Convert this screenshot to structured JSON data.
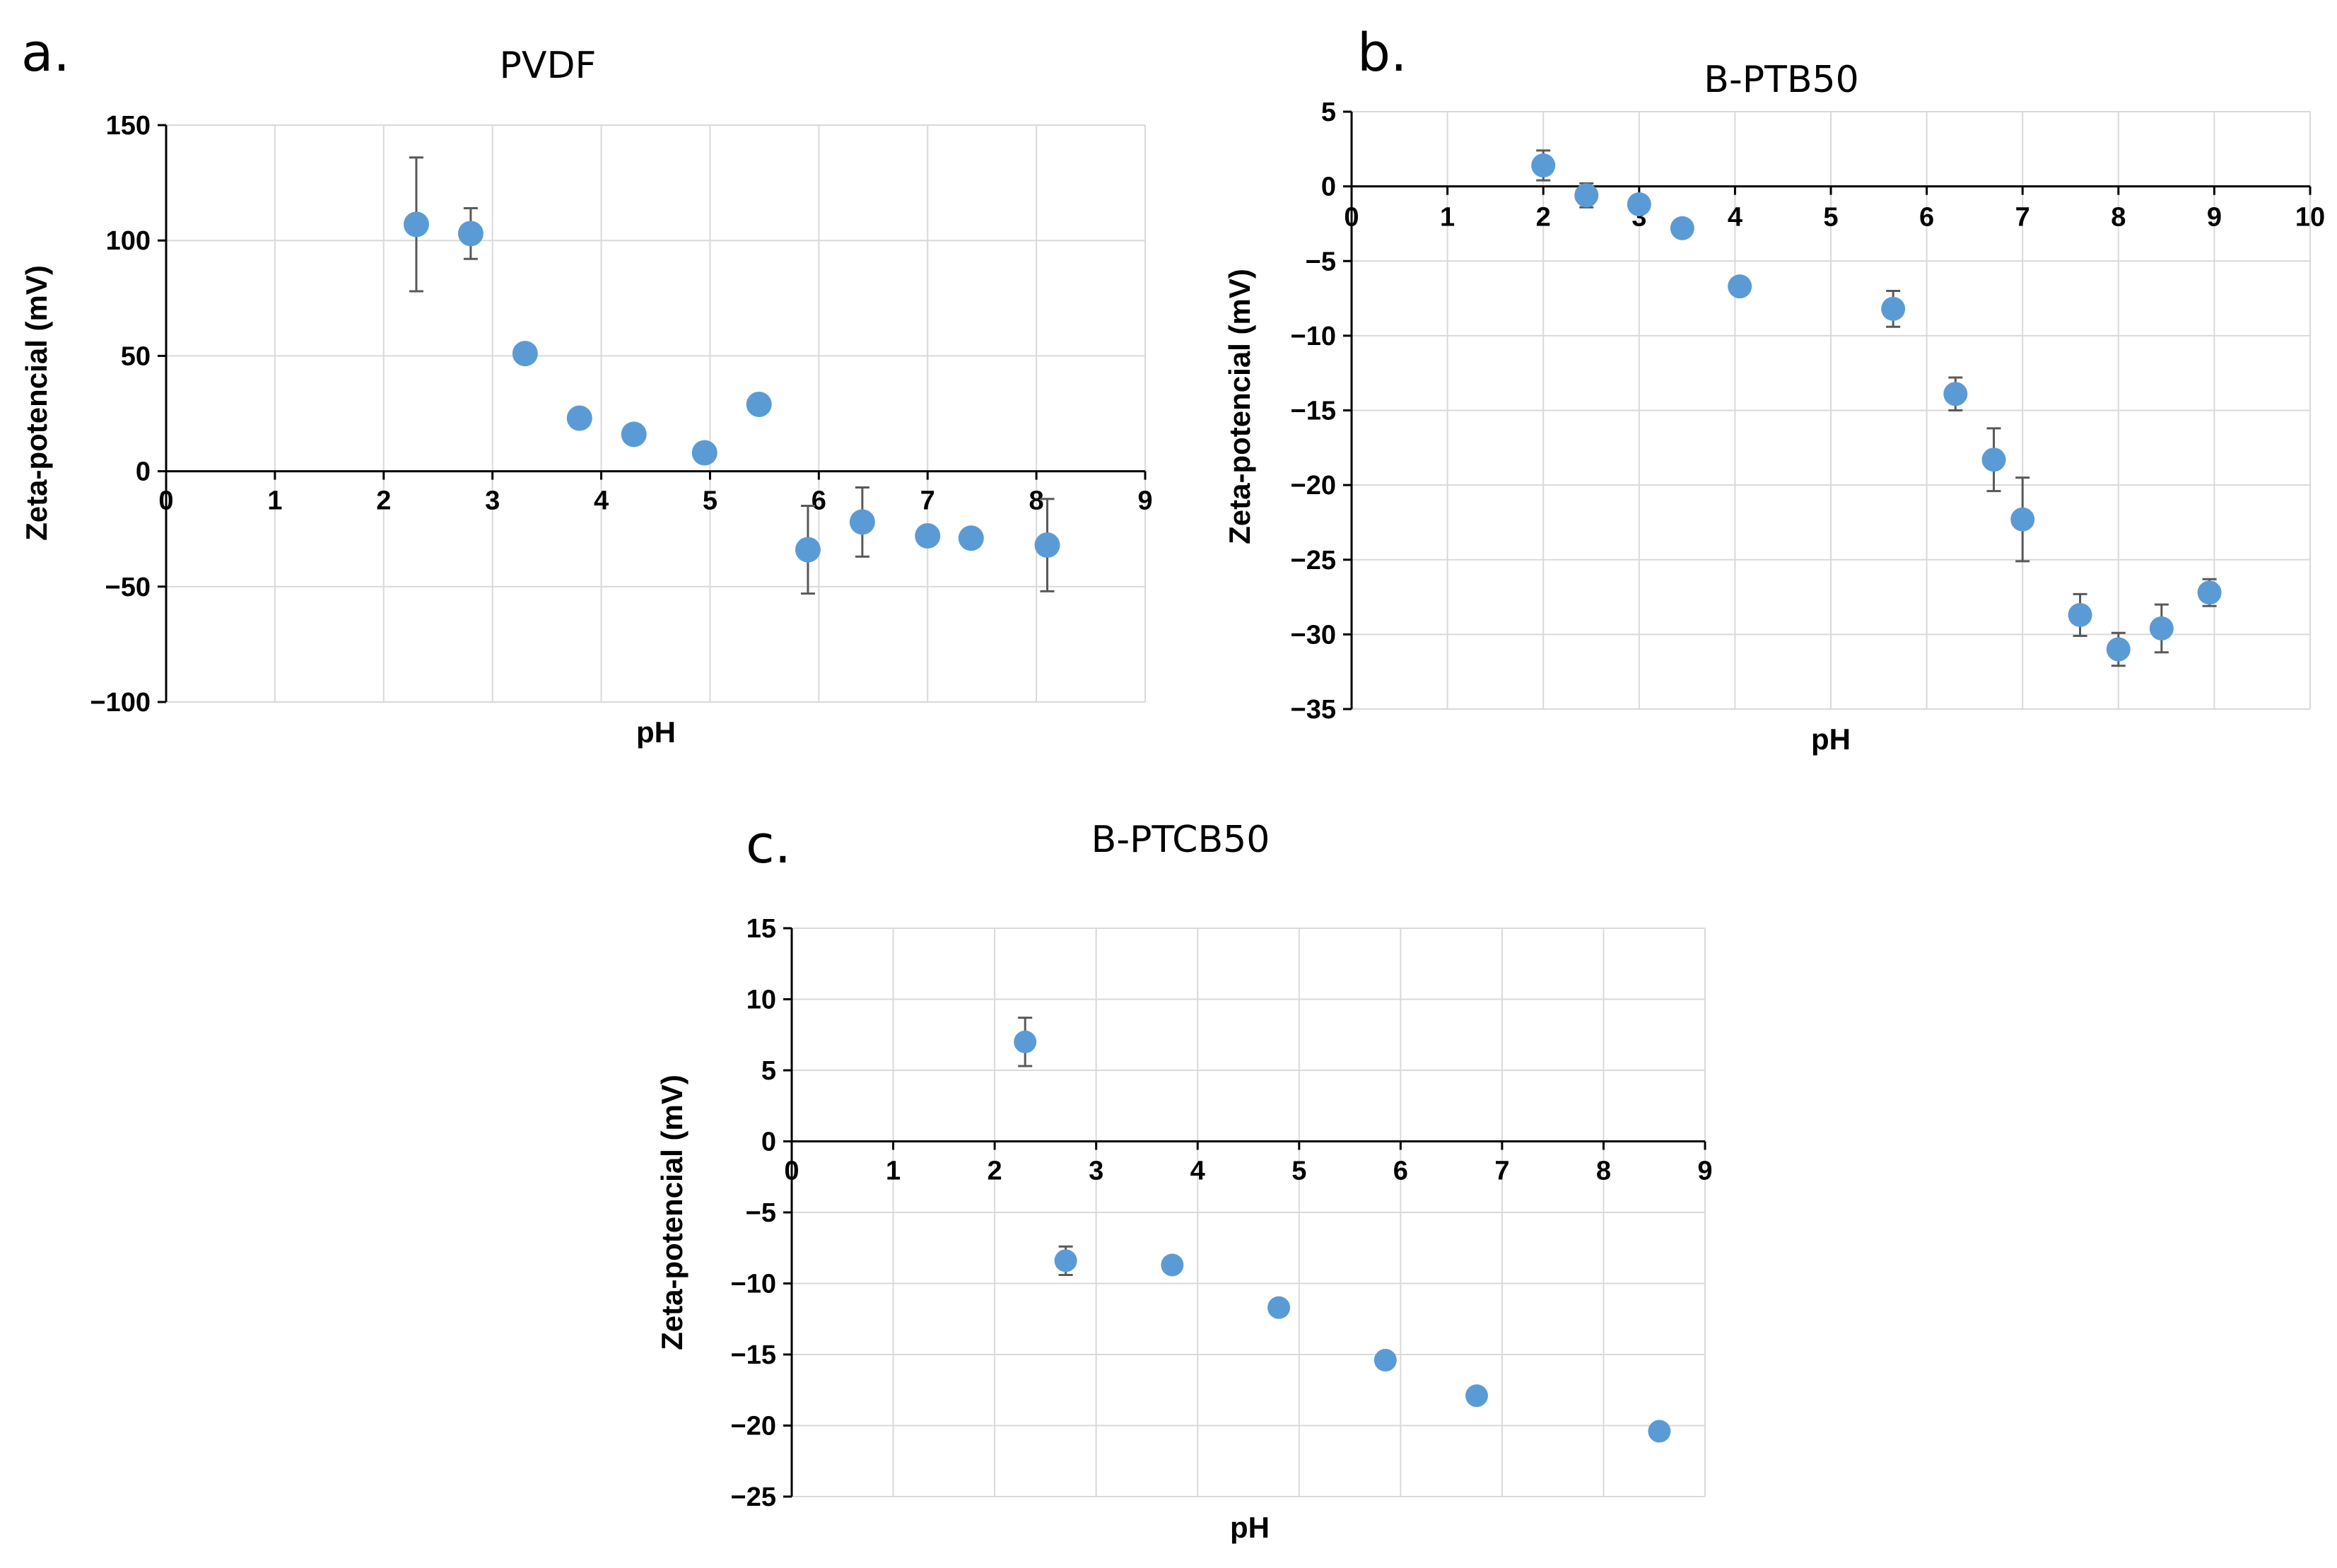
{
  "chart_data": [
    {
      "type": "scatter",
      "panel": "a.",
      "title": "PVDF",
      "xlabel": "pH",
      "ylabel": "Zeta-potencial (mV)",
      "xlim": [
        0,
        9
      ],
      "ylim": [
        -100,
        150
      ],
      "xticks": [
        "0",
        "1",
        "2",
        "3",
        "4",
        "5",
        "6",
        "7",
        "8",
        "9"
      ],
      "yticks": [
        "150",
        "100",
        "50",
        "0",
        "−50",
        "−100"
      ],
      "ytick_values": [
        150,
        100,
        50,
        0,
        -50,
        -100
      ],
      "grid": true,
      "color": "#5b9bd5",
      "points": [
        {
          "x": 2.3,
          "y": 107,
          "err": 29
        },
        {
          "x": 2.8,
          "y": 103,
          "err": 11
        },
        {
          "x": 3.3,
          "y": 51,
          "err": 0
        },
        {
          "x": 3.8,
          "y": 23,
          "err": 0
        },
        {
          "x": 4.3,
          "y": 16,
          "err": 0
        },
        {
          "x": 4.95,
          "y": 8,
          "err": 0
        },
        {
          "x": 5.45,
          "y": 29,
          "err": 0
        },
        {
          "x": 5.9,
          "y": -34,
          "err": 19
        },
        {
          "x": 6.4,
          "y": -22,
          "err": 15
        },
        {
          "x": 7.0,
          "y": -28,
          "err": 0
        },
        {
          "x": 7.4,
          "y": -29,
          "err": 0
        },
        {
          "x": 8.1,
          "y": -32,
          "err": 20
        }
      ]
    },
    {
      "type": "scatter",
      "panel": "b.",
      "title": "B-PTB50",
      "xlabel": "pH",
      "ylabel": "Zeta-potencial (mV)",
      "xlim": [
        0,
        10
      ],
      "ylim": [
        -35,
        5
      ],
      "xticks": [
        "0",
        "1",
        "2",
        "3",
        "4",
        "5",
        "6",
        "7",
        "8",
        "9",
        "10"
      ],
      "yticks": [
        "5",
        "0",
        "−5",
        "−10",
        "−15",
        "−20",
        "−25",
        "−30",
        "−35"
      ],
      "ytick_values": [
        5,
        0,
        -5,
        -10,
        -15,
        -20,
        -25,
        -30,
        -35
      ],
      "grid": true,
      "color": "#5b9bd5",
      "points": [
        {
          "x": 2.0,
          "y": 1.4,
          "err": 1.0
        },
        {
          "x": 2.45,
          "y": -0.6,
          "err": 0.8
        },
        {
          "x": 3.0,
          "y": -1.2,
          "err": 0
        },
        {
          "x": 3.45,
          "y": -2.8,
          "err": 0
        },
        {
          "x": 4.05,
          "y": -6.7,
          "err": 0
        },
        {
          "x": 5.65,
          "y": -8.2,
          "err": 1.2
        },
        {
          "x": 6.3,
          "y": -13.9,
          "err": 1.1
        },
        {
          "x": 6.7,
          "y": -18.3,
          "err": 2.1
        },
        {
          "x": 7.0,
          "y": -22.3,
          "err": 2.8
        },
        {
          "x": 7.6,
          "y": -28.7,
          "err": 1.4
        },
        {
          "x": 8.0,
          "y": -31.0,
          "err": 1.1
        },
        {
          "x": 8.45,
          "y": -29.6,
          "err": 1.6
        },
        {
          "x": 8.95,
          "y": -27.2,
          "err": 0.9
        }
      ]
    },
    {
      "type": "scatter",
      "panel": "c.",
      "title": "B-PTCB50",
      "xlabel": "pH",
      "ylabel": "Zeta-potencial (mV)",
      "xlim": [
        0,
        9
      ],
      "ylim": [
        -25,
        15
      ],
      "xticks": [
        "0",
        "1",
        "2",
        "3",
        "4",
        "5",
        "6",
        "7",
        "8",
        "9"
      ],
      "yticks": [
        "15",
        "10",
        "5",
        "0",
        "−5",
        "−10",
        "−15",
        "−20",
        "−25"
      ],
      "ytick_values": [
        15,
        10,
        5,
        0,
        -5,
        -10,
        -15,
        -20,
        -25
      ],
      "grid": true,
      "color": "#5b9bd5",
      "points": [
        {
          "x": 2.3,
          "y": 7.0,
          "err": 1.7
        },
        {
          "x": 2.7,
          "y": -8.4,
          "err": 1.0
        },
        {
          "x": 3.75,
          "y": -8.7,
          "err": 0
        },
        {
          "x": 4.8,
          "y": -11.7,
          "err": 0
        },
        {
          "x": 5.85,
          "y": -15.4,
          "err": 0
        },
        {
          "x": 6.75,
          "y": -17.9,
          "err": 0
        },
        {
          "x": 8.55,
          "y": -20.4,
          "err": 0
        }
      ]
    }
  ]
}
